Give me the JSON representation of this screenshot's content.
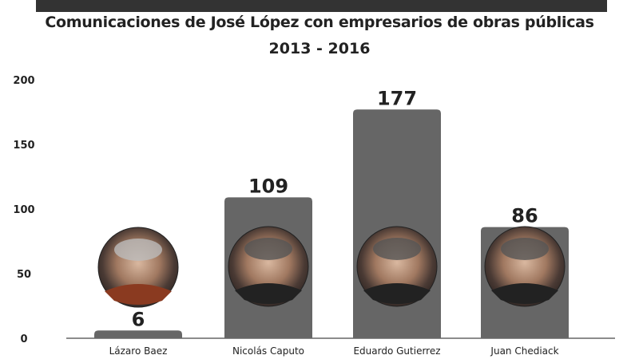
{
  "chart_data": {
    "type": "bar",
    "title": "Comunicaciones de José López con empresarios de obras públicas",
    "subtitle": "2013 - 2016",
    "categories": [
      "Lázaro Baez",
      "Nicolás Caputo",
      "Eduardo Gutierrez",
      "Juan Chediack"
    ],
    "values": [
      6,
      109,
      177,
      86
    ],
    "data_labels": [
      "6",
      "109",
      "177",
      "86"
    ],
    "ylim": [
      0,
      200
    ],
    "yticks": [
      0,
      50,
      100,
      150,
      200
    ],
    "ytick_labels": [
      "0",
      "50",
      "100",
      "150",
      "200"
    ],
    "grid": false,
    "legend": "none",
    "bar_color": "#666666",
    "header_bar_color": "#333333",
    "portrait_icons": [
      "portrait-lazaro-baez",
      "portrait-nicolas-caputo",
      "portrait-eduardo-gutierrez",
      "portrait-juan-chediack"
    ]
  }
}
